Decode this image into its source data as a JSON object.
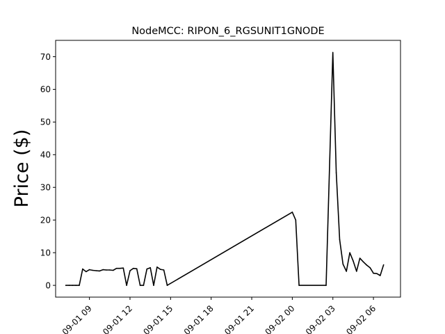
{
  "chart_data": {
    "type": "line",
    "title": "NodeMCC: RIPON_6_RGSUNIT1GNODE",
    "xlabel": "",
    "ylabel": "Price ($)",
    "ylim": [
      -3.6,
      75
    ],
    "xlim": [
      "2023-09-01 06:30",
      "2023-09-02 08:00"
    ],
    "x_tick_labels": [
      "09-01 09",
      "09-01 12",
      "09-01 15",
      "09-01 18",
      "09-01 21",
      "09-02 00",
      "09-02 03",
      "09-02 06"
    ],
    "y_ticks": [
      0,
      10,
      20,
      30,
      40,
      50,
      60,
      70
    ],
    "grid": false,
    "series": [
      {
        "color": "#000000",
        "x": [
          "2023-09-01 07:15",
          "2023-09-01 07:30",
          "2023-09-01 07:45",
          "2023-09-01 08:00",
          "2023-09-01 08:15",
          "2023-09-01 08:30",
          "2023-09-01 08:45",
          "2023-09-01 09:00",
          "2023-09-01 09:15",
          "2023-09-01 09:30",
          "2023-09-01 09:45",
          "2023-09-01 10:00",
          "2023-09-01 10:15",
          "2023-09-01 10:30",
          "2023-09-01 10:45",
          "2023-09-01 11:00",
          "2023-09-01 11:15",
          "2023-09-01 11:30",
          "2023-09-01 11:45",
          "2023-09-01 12:00",
          "2023-09-01 12:15",
          "2023-09-01 12:30",
          "2023-09-01 12:45",
          "2023-09-01 13:00",
          "2023-09-01 13:15",
          "2023-09-01 13:30",
          "2023-09-01 13:45",
          "2023-09-01 14:00",
          "2023-09-01 14:15",
          "2023-09-01 14:30",
          "2023-09-01 14:45",
          "2023-09-02 00:00",
          "2023-09-02 00:15",
          "2023-09-02 00:30",
          "2023-09-02 02:30",
          "2023-09-02 03:00",
          "2023-09-02 03:15",
          "2023-09-02 03:30",
          "2023-09-02 03:45",
          "2023-09-02 04:00",
          "2023-09-02 04:15",
          "2023-09-02 04:30",
          "2023-09-02 04:45",
          "2023-09-02 05:00",
          "2023-09-02 05:15",
          "2023-09-02 05:30",
          "2023-09-02 05:45",
          "2023-09-02 06:00",
          "2023-09-02 06:15",
          "2023-09-02 06:30",
          "2023-09-02 06:45"
        ],
        "values": [
          0,
          0,
          0,
          0,
          0,
          5.0,
          4.2,
          4.8,
          4.6,
          4.5,
          4.4,
          4.8,
          4.7,
          4.7,
          4.6,
          5.2,
          5.2,
          5.3,
          0,
          4.5,
          5.2,
          5.1,
          0,
          0,
          5.0,
          5.4,
          0,
          5.6,
          4.9,
          4.7,
          0,
          22.4,
          20.0,
          0,
          0,
          71.3,
          34.5,
          14.0,
          6.5,
          4.3,
          10.0,
          7.5,
          4.3,
          8.3,
          7.2,
          6.2,
          5.4,
          3.7,
          3.6,
          3.0,
          6.3
        ]
      }
    ]
  }
}
